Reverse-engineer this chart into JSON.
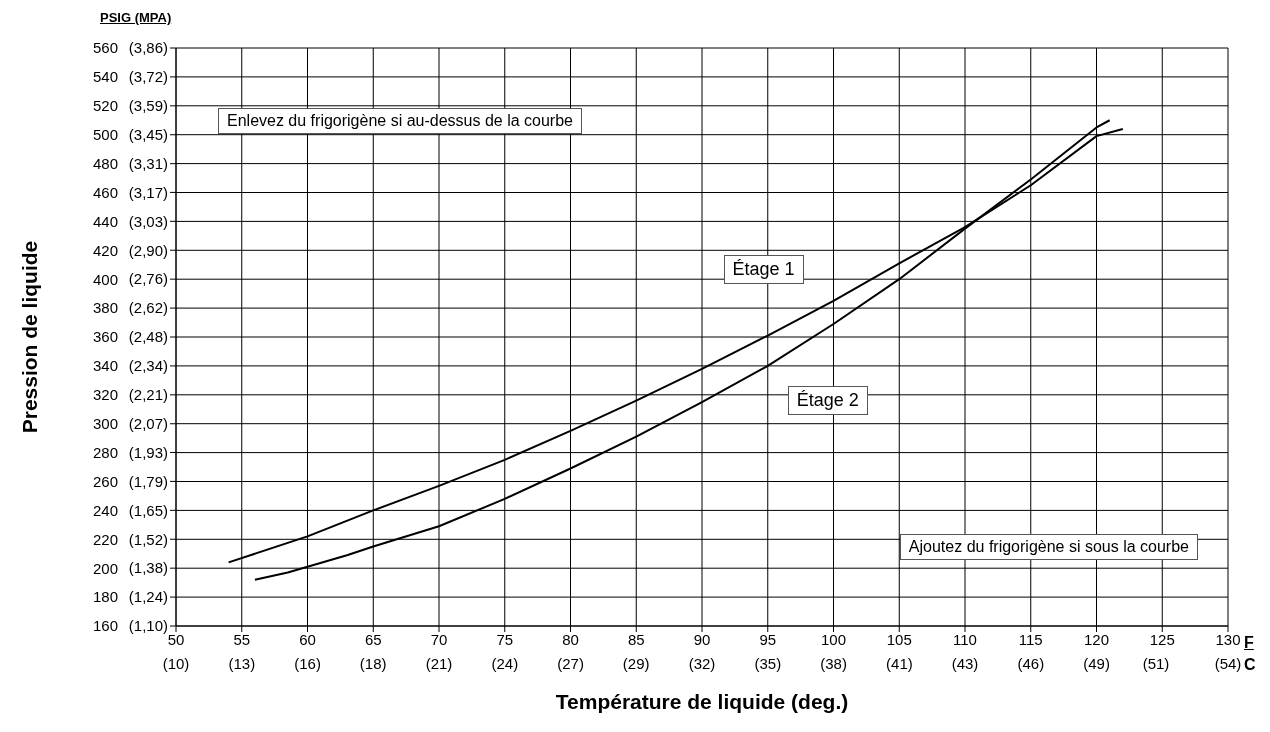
{
  "chart_data": {
    "type": "line",
    "xlabel": "Température de liquide (deg.)",
    "ylabel": "Pression de liquide",
    "xlim": [
      50,
      130
    ],
    "xticks": [
      50,
      55,
      60,
      65,
      70,
      75,
      80,
      85,
      90,
      95,
      100,
      105,
      110,
      115,
      120,
      125,
      130
    ],
    "x2lim": [
      10,
      54.44
    ],
    "x2ticks": [
      {
        "value": 10,
        "label": "(10)"
      },
      {
        "value": 12.78,
        "label": "(13)"
      },
      {
        "value": 15.56,
        "label": "(16)"
      },
      {
        "value": 18.33,
        "label": "(18)"
      },
      {
        "value": 21.11,
        "label": "(21)"
      },
      {
        "value": 23.89,
        "label": "(24)"
      },
      {
        "value": 26.67,
        "label": "(27)"
      },
      {
        "value": 29.44,
        "label": "(29)"
      },
      {
        "value": 32.22,
        "label": "(32)"
      },
      {
        "value": 35,
        "label": "(35)"
      },
      {
        "value": 37.78,
        "label": "(38)"
      },
      {
        "value": 40.56,
        "label": "(41)"
      },
      {
        "value": 43.33,
        "label": "(43)"
      },
      {
        "value": 46.11,
        "label": "(46)"
      },
      {
        "value": 48.89,
        "label": "(49)"
      },
      {
        "value": 51.4,
        "label": "(51)"
      },
      {
        "value": 54.44,
        "label": "(54)"
      }
    ],
    "ylim": [
      160,
      560
    ],
    "yticks": [
      160,
      180,
      200,
      220,
      240,
      260,
      280,
      300,
      320,
      340,
      360,
      380,
      400,
      420,
      440,
      460,
      480,
      500,
      520,
      540,
      560
    ],
    "y2lim": [
      1.103,
      3.861
    ],
    "y2ticks": [
      {
        "value": 1.103,
        "label": "(1,10)"
      },
      {
        "value": 1.241,
        "label": "(1,24)"
      },
      {
        "value": 1.379,
        "label": "(1,38)"
      },
      {
        "value": 1.517,
        "label": "(1,52)"
      },
      {
        "value": 1.655,
        "label": "(1,65)"
      },
      {
        "value": 1.793,
        "label": "(1,79)"
      },
      {
        "value": 1.931,
        "label": "(1,93)"
      },
      {
        "value": 2.068,
        "label": "(2,07)"
      },
      {
        "value": 2.206,
        "label": "(2,21)"
      },
      {
        "value": 2.344,
        "label": "(2,34)"
      },
      {
        "value": 2.482,
        "label": "(2,48)"
      },
      {
        "value": 2.62,
        "label": "(2,62)"
      },
      {
        "value": 2.758,
        "label": "(2,76)"
      },
      {
        "value": 2.896,
        "label": "(2,90)"
      },
      {
        "value": 3.034,
        "label": "(3,03)"
      },
      {
        "value": 3.172,
        "label": "(3,17)"
      },
      {
        "value": 3.309,
        "label": "(3,31)"
      },
      {
        "value": 3.447,
        "label": "(3,45)"
      },
      {
        "value": 3.585,
        "label": "(3,59)"
      },
      {
        "value": 3.723,
        "label": "(3,72)"
      },
      {
        "value": 3.861,
        "label": "(3,86)"
      }
    ],
    "grid": true,
    "marker": "none",
    "line_style": "solid",
    "series": [
      {
        "name": "Étage 1",
        "color": "#000000",
        "x": [
          54,
          60,
          65,
          70,
          75,
          80,
          85,
          90,
          95,
          100,
          105,
          110,
          115,
          120,
          122
        ],
        "values": [
          204,
          222,
          240,
          257,
          275,
          295,
          316,
          338,
          361,
          385,
          411,
          436,
          465,
          499,
          504
        ]
      },
      {
        "name": "Étage 2",
        "color": "#000000",
        "x": [
          56,
          58.5,
          60,
          63,
          65,
          70,
          75,
          80,
          85,
          90,
          95,
          100,
          105,
          110,
          115,
          120,
          121
        ],
        "values": [
          192,
          197,
          201,
          209,
          215,
          229,
          248,
          269,
          291,
          315,
          340,
          369,
          400,
          435,
          469,
          505,
          510
        ]
      }
    ],
    "annotations": [
      "PSIG (MPA)",
      "F",
      "C",
      "Enlevez du frigorigène si au-dessus de la courbe",
      "Ajoutez du frigorigène si sous la courbe"
    ]
  }
}
